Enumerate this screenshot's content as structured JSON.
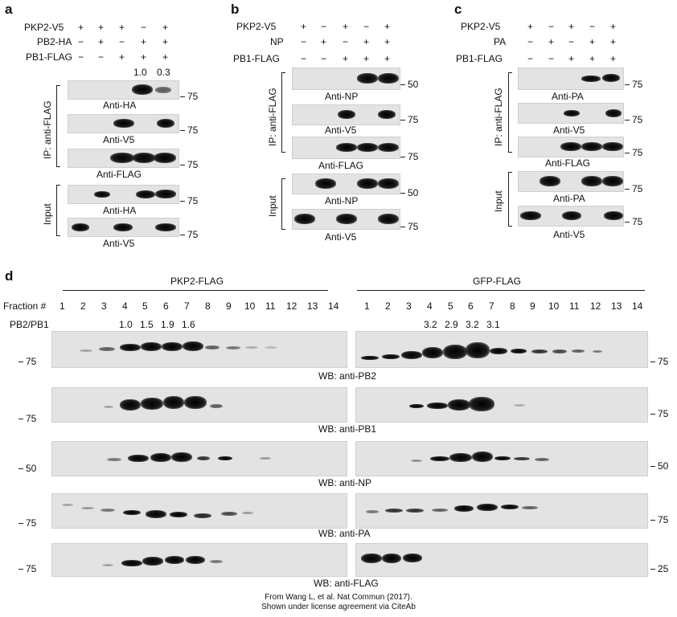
{
  "panels": {
    "a": {
      "letter": "a",
      "rows": [
        {
          "label": "PKP2-V5",
          "signs": [
            "+",
            "+",
            "+",
            "−",
            "+"
          ]
        },
        {
          "label": "PB2-HA",
          "signs": [
            "−",
            "+",
            "−",
            "+",
            "+"
          ]
        },
        {
          "label": "PB1-FLAG",
          "signs": [
            "−",
            "−",
            "+",
            "+",
            "+"
          ]
        }
      ],
      "ratios": [
        "1.0",
        "0.3"
      ],
      "ip_label": "IP: anti-FLAG",
      "input_label": "Input",
      "blots": [
        {
          "label": "Anti-HA",
          "mw": "75"
        },
        {
          "label": "Anti-V5",
          "mw": "75"
        },
        {
          "label": "Anti-FLAG",
          "mw": "75"
        },
        {
          "label": "Anti-HA",
          "mw": "75"
        },
        {
          "label": "Anti-V5",
          "mw": "75"
        }
      ]
    },
    "b": {
      "letter": "b",
      "rows": [
        {
          "label": "PKP2-V5",
          "signs": [
            "+",
            "−",
            "+",
            "−",
            "+"
          ]
        },
        {
          "label": "NP",
          "signs": [
            "−",
            "+",
            "−",
            "+",
            "+"
          ]
        },
        {
          "label": "PB1-FLAG",
          "signs": [
            "−",
            "−",
            "+",
            "+",
            "+"
          ]
        }
      ],
      "ip_label": "IP: anti-FLAG",
      "input_label": "Input",
      "blots": [
        {
          "label": "Anti-NP",
          "mw": "50"
        },
        {
          "label": "Anti-V5",
          "mw": "75"
        },
        {
          "label": "Anti-FLAG",
          "mw": "75"
        },
        {
          "label": "Anti-NP",
          "mw": "50"
        },
        {
          "label": "Anti-V5",
          "mw": "75"
        }
      ]
    },
    "c": {
      "letter": "c",
      "rows": [
        {
          "label": "PKP2-V5",
          "signs": [
            "+",
            "−",
            "+",
            "−",
            "+"
          ]
        },
        {
          "label": "PA",
          "signs": [
            "−",
            "+",
            "−",
            "+",
            "+"
          ]
        },
        {
          "label": "PB1-FLAG",
          "signs": [
            "−",
            "−",
            "+",
            "+",
            "+"
          ]
        }
      ],
      "ip_label": "IP: anti-FLAG",
      "input_label": "Input",
      "blots": [
        {
          "label": "Anti-PA",
          "mw": "75"
        },
        {
          "label": "Anti-V5",
          "mw": "75"
        },
        {
          "label": "Anti-FLAG",
          "mw": "75"
        },
        {
          "label": "Anti-PA",
          "mw": "75"
        },
        {
          "label": "Anti-V5",
          "mw": "75"
        }
      ]
    },
    "d": {
      "letter": "d",
      "left_title": "PKP2-FLAG",
      "right_title": "GFP-FLAG",
      "fraction_label": "Fraction #",
      "fractions": [
        "1",
        "2",
        "3",
        "4",
        "5",
        "6",
        "7",
        "8",
        "9",
        "10",
        "11",
        "12",
        "13",
        "14"
      ],
      "ratio_label": "PB2/PB1",
      "left_ratios": [
        "1.0",
        "1.5",
        "1.9",
        "1.6"
      ],
      "right_ratios": [
        "3.2",
        "2.9",
        "3.2",
        "3.1"
      ],
      "blots": [
        {
          "label": "WB: anti-PB2",
          "left_mw": "75",
          "right_mw": "75"
        },
        {
          "label": "WB: anti-PB1",
          "left_mw": "75",
          "right_mw": "75"
        },
        {
          "label": "WB: anti-NP",
          "left_mw": "50",
          "right_mw": "50"
        },
        {
          "label": "WB: anti-PA",
          "left_mw": "75",
          "right_mw": "75"
        },
        {
          "label": "WB: anti-FLAG",
          "left_mw": "75",
          "right_mw": "25"
        }
      ]
    }
  },
  "credit": {
    "line1": "From Wang L, et al. Nat Commun (2017).",
    "line2": "Shown under license agreement via CiteAb"
  }
}
